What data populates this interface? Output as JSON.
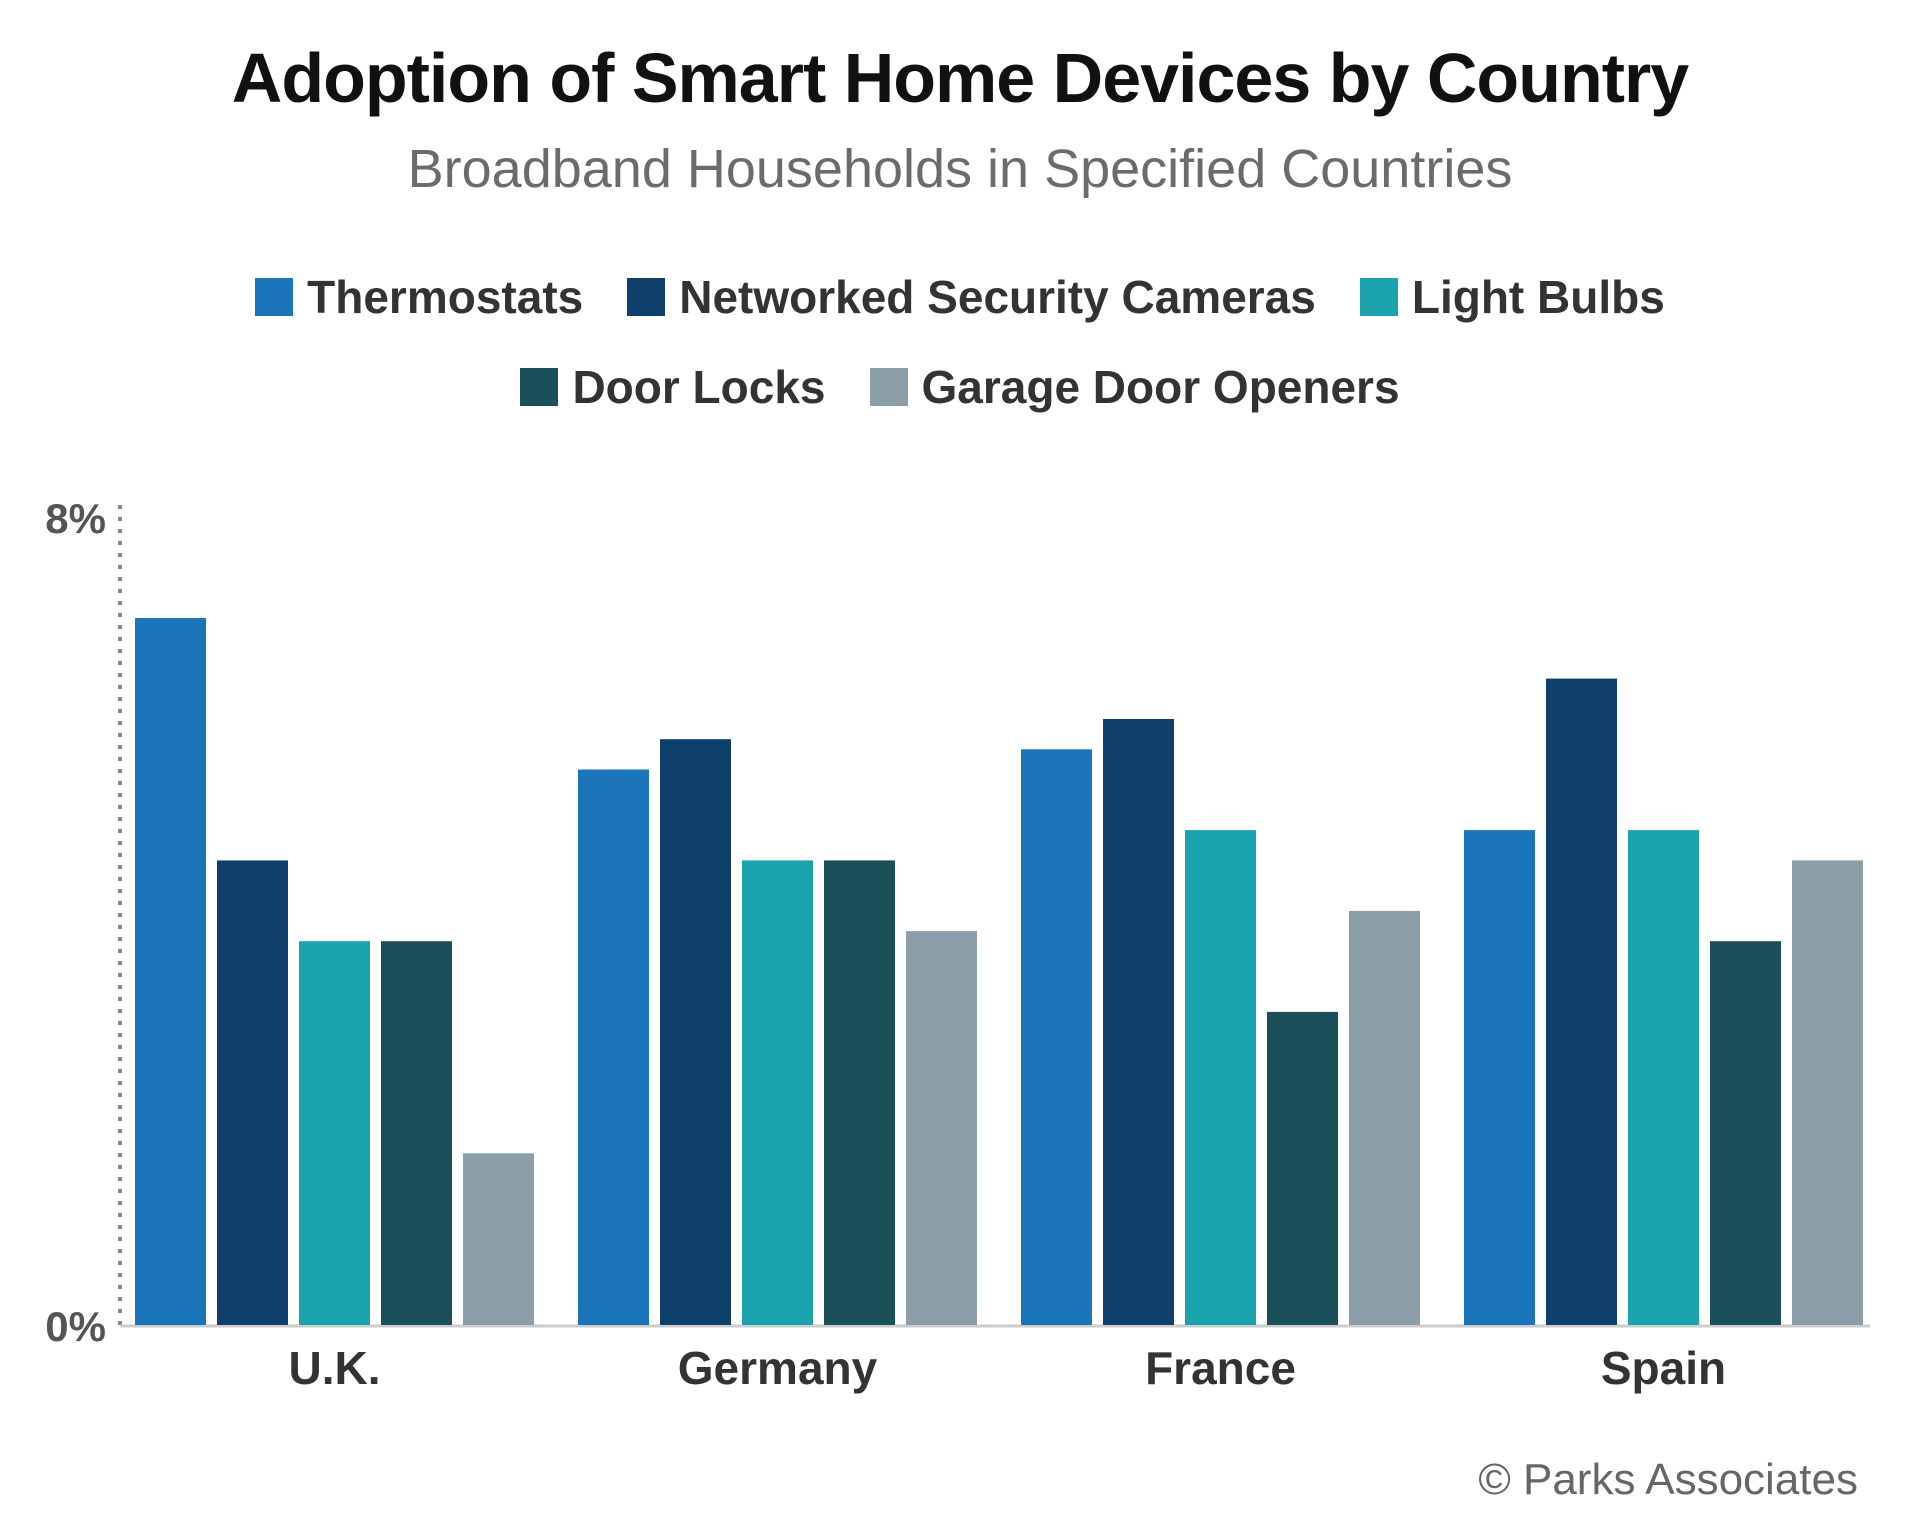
{
  "chart_data": {
    "type": "bar",
    "title": "Adoption of Smart Home Devices by Country",
    "subtitle": "Broadband Households in Specified Countries",
    "categories": [
      "U.K.",
      "Germany",
      "France",
      "Spain"
    ],
    "series": [
      {
        "name": "Thermostats",
        "color": "#1a75bb",
        "values": [
          7.0,
          5.5,
          5.7,
          4.9
        ]
      },
      {
        "name": "Networked Security Cameras",
        "color": "#0f3f6b",
        "values": [
          4.6,
          5.8,
          6.0,
          6.4
        ]
      },
      {
        "name": "Light Bulbs",
        "color": "#1ba3ae",
        "values": [
          3.8,
          4.6,
          4.9,
          4.9
        ]
      },
      {
        "name": "Door Locks",
        "color": "#1b4f5a",
        "values": [
          3.8,
          4.6,
          3.1,
          3.8
        ]
      },
      {
        "name": "Garage Door Openers",
        "color": "#8c9ea8",
        "values": [
          1.7,
          3.9,
          4.1,
          4.6
        ]
      }
    ],
    "ylim": [
      0,
      8
    ],
    "yticks": [
      "0%",
      "8%"
    ],
    "xlabel": "",
    "ylabel": "",
    "grid": false,
    "legend": "top",
    "credit": "© Parks Associates"
  }
}
